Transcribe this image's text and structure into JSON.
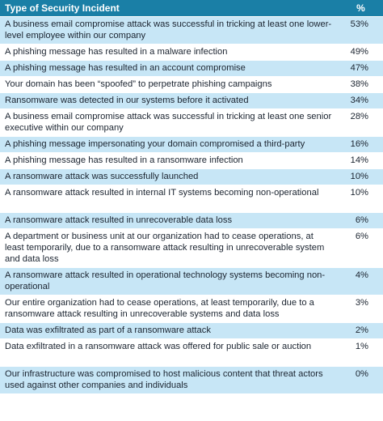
{
  "table": {
    "header": {
      "label": "Type of Security Incident",
      "pct": "%"
    },
    "rows": [
      {
        "label": "A business email compromise attack was successful in tricking at least one lower-level employee within our company",
        "pct": "53%"
      },
      {
        "label": "A phishing message has resulted in a malware infection",
        "pct": "49%"
      },
      {
        "label": "A phishing message has resulted in an account compromise",
        "pct": "47%"
      },
      {
        "label": "Your domain has been “spoofed” to perpetrate phishing campaigns",
        "pct": "38%"
      },
      {
        "label": "Ransomware was detected in our systems before it activated",
        "pct": "34%"
      },
      {
        "label": "A business email compromise attack was successful in tricking at least one senior executive within our company",
        "pct": "28%"
      },
      {
        "label": "A phishing message impersonating your domain compromised a third-party",
        "pct": "16%"
      },
      {
        "label": "A phishing message has resulted in a ransomware infection",
        "pct": "14%"
      },
      {
        "label": "A ransomware attack was successfully launched",
        "pct": "10%"
      },
      {
        "label": "A ransomware attack resulted in internal IT systems becoming non-operational",
        "pct": "10%"
      },
      {
        "label": "A ransomware attack resulted in unrecoverable data loss",
        "pct": "6%"
      },
      {
        "label": "A department or business unit at our organization had to cease operations, at least temporarily, due to a ransomware attack resulting in unrecoverable system and data loss",
        "pct": "6%"
      },
      {
        "label": "A ransomware attack resulted in operational technology systems becoming non-operational",
        "pct": "4%"
      },
      {
        "label": "Our entire organization had to cease operations, at least temporarily, due to a ransomware attack resulting in unrecoverable systems and data loss",
        "pct": "3%"
      },
      {
        "label": "Data was exfiltrated as part of a ransomware attack",
        "pct": "2%"
      },
      {
        "label": "Data exfiltrated in a ransomware attack was offered for public sale or auction",
        "pct": "1%"
      },
      {
        "label": "Our infrastructure was compromised to host malicious content that threat actors used against other companies and individuals",
        "pct": "0%"
      }
    ]
  }
}
